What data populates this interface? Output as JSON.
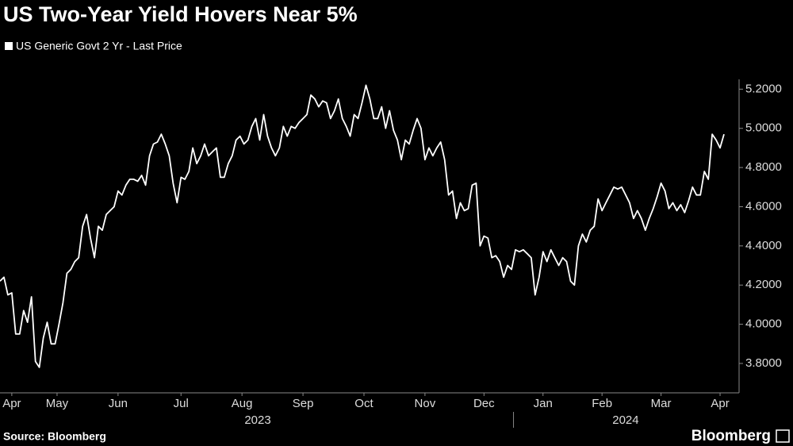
{
  "chart_data": {
    "type": "line",
    "title": "US Two-Year Yield Hovers Near 5%",
    "source": "Source: Bloomberg",
    "brand": "Bloomberg",
    "series": [
      {
        "name": "US Generic Govt 2 Yr - Last Price",
        "color": "#ffffff",
        "values": [
          4.22,
          4.24,
          4.15,
          4.16,
          3.95,
          3.95,
          4.07,
          4.01,
          4.14,
          3.81,
          3.78,
          3.93,
          4.01,
          3.9,
          3.9,
          4.0,
          4.11,
          4.26,
          4.28,
          4.32,
          4.34,
          4.5,
          4.56,
          4.44,
          4.34,
          4.5,
          4.48,
          4.56,
          4.58,
          4.6,
          4.68,
          4.66,
          4.71,
          4.74,
          4.74,
          4.73,
          4.76,
          4.71,
          4.86,
          4.92,
          4.93,
          4.97,
          4.92,
          4.86,
          4.72,
          4.62,
          4.75,
          4.74,
          4.78,
          4.9,
          4.82,
          4.86,
          4.92,
          4.86,
          4.88,
          4.9,
          4.75,
          4.75,
          4.82,
          4.86,
          4.94,
          4.96,
          4.92,
          4.94,
          5.01,
          5.05,
          4.94,
          5.07,
          4.96,
          4.9,
          4.86,
          4.9,
          5.01,
          4.96,
          5.01,
          5.0,
          5.03,
          5.05,
          5.07,
          5.17,
          5.15,
          5.11,
          5.14,
          5.13,
          5.05,
          5.09,
          5.15,
          5.05,
          5.01,
          4.96,
          5.07,
          5.05,
          5.13,
          5.22,
          5.15,
          5.05,
          5.05,
          5.11,
          5.0,
          5.09,
          4.99,
          4.94,
          4.84,
          4.94,
          4.92,
          4.99,
          5.05,
          5.0,
          4.84,
          4.9,
          4.86,
          4.9,
          4.93,
          4.84,
          4.66,
          4.68,
          4.54,
          4.62,
          4.58,
          4.59,
          4.71,
          4.72,
          4.4,
          4.45,
          4.44,
          4.34,
          4.35,
          4.32,
          4.24,
          4.3,
          4.28,
          4.38,
          4.37,
          4.38,
          4.36,
          4.34,
          4.15,
          4.24,
          4.37,
          4.32,
          4.38,
          4.34,
          4.3,
          4.34,
          4.32,
          4.22,
          4.2,
          4.4,
          4.46,
          4.42,
          4.48,
          4.5,
          4.64,
          4.58,
          4.62,
          4.66,
          4.7,
          4.69,
          4.7,
          4.66,
          4.62,
          4.54,
          4.58,
          4.54,
          4.48,
          4.54,
          4.59,
          4.65,
          4.72,
          4.68,
          4.59,
          4.62,
          4.58,
          4.61,
          4.57,
          4.63,
          4.7,
          4.66,
          4.66,
          4.78,
          4.74,
          4.97,
          4.94,
          4.9,
          4.97
        ]
      }
    ],
    "xlim": [
      0,
      184
    ],
    "xticks": [
      {
        "value": 3,
        "label": "Apr"
      },
      {
        "value": 14.5,
        "label": "May"
      },
      {
        "value": 30,
        "label": "Jun"
      },
      {
        "value": 46,
        "label": "Jul"
      },
      {
        "value": 61.5,
        "label": "Aug"
      },
      {
        "value": 77,
        "label": "Sep"
      },
      {
        "value": 92.5,
        "label": "Oct"
      },
      {
        "value": 108,
        "label": "Nov"
      },
      {
        "value": 123,
        "label": "Dec"
      },
      {
        "value": 138,
        "label": "Jan"
      },
      {
        "value": 153,
        "label": "Feb"
      },
      {
        "value": 168,
        "label": "Mar"
      },
      {
        "value": 183,
        "label": "Apr"
      }
    ],
    "year_labels": [
      {
        "value": 65.5,
        "label": "2023"
      },
      {
        "value": 159,
        "label": "2024"
      }
    ],
    "ylim": [
      3.65,
      5.25
    ],
    "yticks": [
      {
        "value": 3.8,
        "label": "3.8000"
      },
      {
        "value": 4.0,
        "label": "4.0000"
      },
      {
        "value": 4.2,
        "label": "4.2000"
      },
      {
        "value": 4.4,
        "label": "4.4000"
      },
      {
        "value": 4.6,
        "label": "4.6000"
      },
      {
        "value": 4.8,
        "label": "4.8000"
      },
      {
        "value": 5.0,
        "label": "5.0000"
      },
      {
        "value": 5.2,
        "label": "5.2000"
      }
    ],
    "y_axis_side": "right",
    "grid": false
  }
}
